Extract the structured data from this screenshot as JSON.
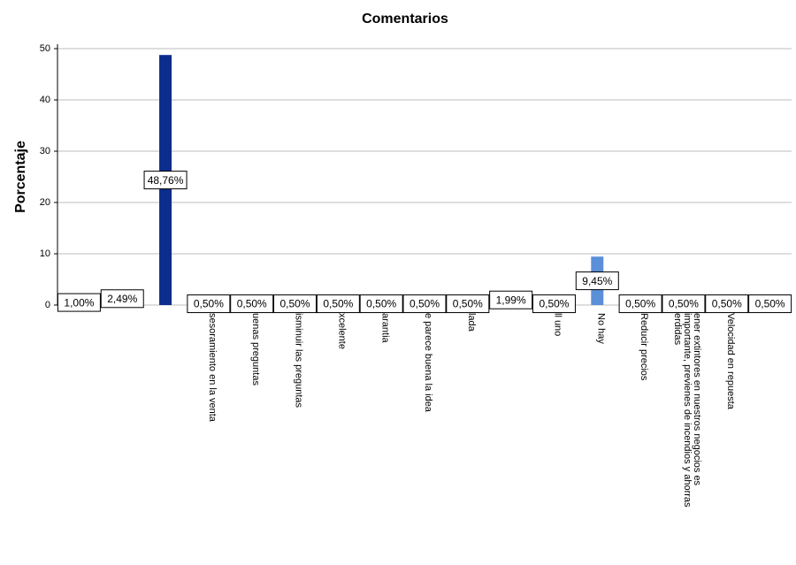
{
  "chart_data": {
    "type": "bar",
    "title": "Comentarios",
    "y_label": "Porcentaje",
    "categories": [
      null,
      null,
      null,
      "sesoramiento en la venta",
      "uenas preguntas",
      "isminuir las preguntas",
      "xcelente",
      "arantia",
      "e parece buena la idea",
      "lada",
      null,
      "ll uno",
      "No hay",
      "Reducir precios",
      "ener extintores en nuestros negocios es\nimportante, previenes de incendios y ahorras\nerdidas",
      "Velocidad  en repuesta",
      null
    ],
    "values": [
      1.0,
      2.49,
      48.76,
      0.5,
      0.5,
      0.5,
      0.5,
      0.5,
      0.5,
      0.5,
      1.99,
      0.5,
      9.45,
      0.5,
      0.5,
      0.5,
      0.5
    ],
    "value_labels": [
      "1,00%",
      "2,49%",
      "48,76%",
      "0,50%",
      "0,50%",
      "0,50%",
      "0,50%",
      "0,50%",
      "0,50%",
      "0,50%",
      "1,99%",
      "0,50%",
      "9,45%",
      "0,50%",
      "0,50%",
      "0,50%",
      "0,50%"
    ],
    "colors": [
      "#5b8fd8",
      "#5b8fd8",
      "#0d2d8c",
      "#5b8fd8",
      "#5b8fd8",
      "#5b8fd8",
      "#5b8fd8",
      "#5b8fd8",
      "#5b8fd8",
      "#5b8fd8",
      "#5b8fd8",
      "#5b8fd8",
      "#5b8fd8",
      "#5b8fd8",
      "#5b8fd8",
      "#5b8fd8",
      "#5b8fd8"
    ],
    "ylim": [
      0,
      50
    ],
    "yticks": [
      0,
      10,
      20,
      30,
      40,
      50
    ],
    "grid": true
  }
}
